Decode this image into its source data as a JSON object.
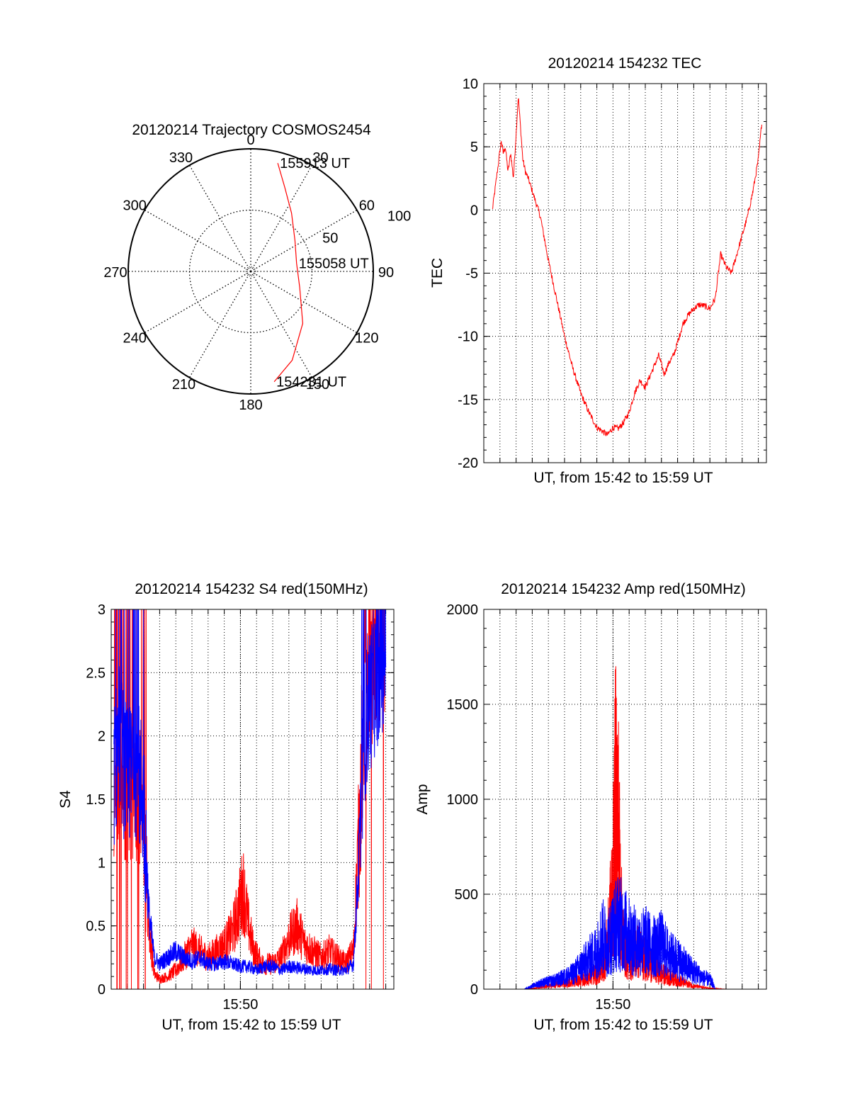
{
  "colors": {
    "red": "#ff0000",
    "blue": "#0000ff",
    "axis": "#000000",
    "grid": "#000000"
  },
  "chart_data": [
    {
      "id": "trajectory",
      "type": "polar",
      "title": "20120214 Trajectory COSMOS2454",
      "angle_labels": [
        "0",
        "30",
        "60",
        "90",
        "120",
        "150",
        "180",
        "210",
        "240",
        "270",
        "300",
        "330"
      ],
      "radius_labels": [
        "50",
        "100"
      ],
      "rlim": [
        0,
        100
      ],
      "grid": true,
      "series": [
        {
          "color": "red",
          "points": [
            {
              "az": 14,
              "r": 91
            },
            {
              "az": 22,
              "r": 74
            },
            {
              "az": 35,
              "r": 58
            },
            {
              "az": 55,
              "r": 44
            },
            {
              "az": 80,
              "r": 38
            },
            {
              "az": 108,
              "r": 42
            },
            {
              "az": 135,
              "r": 60
            },
            {
              "az": 155,
              "r": 80
            },
            {
              "az": 168,
              "r": 92
            }
          ]
        }
      ],
      "annotations": [
        {
          "text": "155913 UT",
          "az": 14,
          "r": 91
        },
        {
          "text": "155058 UT",
          "az": 80,
          "r": 38
        },
        {
          "text": "154231 UT",
          "az": 168,
          "r": 92
        }
      ]
    },
    {
      "id": "tec",
      "type": "line",
      "title": "20120214 154232 TEC",
      "xlabel": "UT, from 15:42 to 15:59 UT",
      "ylabel": "TEC",
      "xlim": [
        "15:42:00",
        "15:59:30"
      ],
      "ylim": [
        -20,
        10
      ],
      "yticks": [
        -20,
        -15,
        -10,
        -5,
        0,
        5,
        10
      ],
      "xticks": [],
      "grid": true,
      "series": [
        {
          "color": "red",
          "x": [
            "15:42:32",
            "15:42:50",
            "15:43:05",
            "15:43:12",
            "15:43:20",
            "15:43:30",
            "15:43:40",
            "15:43:50",
            "15:44:00",
            "15:44:08",
            "15:44:15",
            "15:44:25",
            "15:44:35",
            "15:44:45",
            "15:45:00",
            "15:45:30",
            "15:46:00",
            "15:46:30",
            "15:47:00",
            "15:47:30",
            "15:48:00",
            "15:48:30",
            "15:49:00",
            "15:49:20",
            "15:49:40",
            "15:50:00",
            "15:50:20",
            "15:50:40",
            "15:51:00",
            "15:51:20",
            "15:51:40",
            "15:52:00",
            "15:52:30",
            "15:52:50",
            "15:53:10",
            "15:53:30",
            "15:53:45",
            "15:54:00",
            "15:54:20",
            "15:54:40",
            "15:55:00",
            "15:55:20",
            "15:55:40",
            "15:56:00",
            "15:56:20",
            "15:56:40",
            "15:57:00",
            "15:57:20",
            "15:57:40",
            "15:58:00",
            "15:58:20",
            "15:58:40",
            "15:59:00",
            "15:59:13"
          ],
          "y": [
            0,
            3,
            5.5,
            4.5,
            5,
            3,
            4.5,
            2.5,
            6,
            9,
            7,
            4,
            3,
            2.5,
            1.5,
            -0.5,
            -4,
            -7,
            -10,
            -12.5,
            -14.5,
            -16,
            -17.2,
            -17.5,
            -17.8,
            -17.2,
            -17.3,
            -16.8,
            -16,
            -14.5,
            -13.5,
            -14,
            -12.5,
            -11.5,
            -13,
            -12,
            -11.5,
            -10.5,
            -9,
            -8.3,
            -7.8,
            -7.5,
            -7.6,
            -7.8,
            -7,
            -3.5,
            -4.5,
            -5,
            -3.5,
            -2,
            -0.5,
            1.5,
            4,
            7
          ]
        }
      ]
    },
    {
      "id": "s4",
      "type": "line",
      "title": "20120214 154232 S4 red(150MHz)",
      "xlabel": "UT, from 15:42 to 15:59 UT",
      "ylabel": "S4",
      "xlim": [
        "15:42:00",
        "15:59:30"
      ],
      "ylim": [
        0,
        3
      ],
      "yticks": [
        "0",
        "0.5",
        "1",
        "1.5",
        "2",
        "2.5",
        "3"
      ],
      "xticks": [
        "15:50"
      ],
      "grid": true,
      "series": [
        {
          "color": "red",
          "x": [
            "15:42:10",
            "15:42:30",
            "15:43:00",
            "15:43:30",
            "15:44:00",
            "15:44:20",
            "15:44:40",
            "15:45:00",
            "15:45:30",
            "15:46:00",
            "15:46:30",
            "15:47:00",
            "15:47:30",
            "15:48:00",
            "15:48:30",
            "15:49:00",
            "15:49:30",
            "15:49:50",
            "15:50:10",
            "15:50:30",
            "15:50:50",
            "15:51:20",
            "15:52:00",
            "15:52:30",
            "15:53:00",
            "15:53:30",
            "15:54:00",
            "15:54:30",
            "15:55:00",
            "15:55:30",
            "15:56:00",
            "15:56:30",
            "15:57:00",
            "15:57:20",
            "15:57:40",
            "15:58:00",
            "15:58:30",
            "15:59:00"
          ],
          "y": [
            1.6,
            1.8,
            1.5,
            1.6,
            1.4,
            0.5,
            0.12,
            0.08,
            0.1,
            0.15,
            0.25,
            0.35,
            0.3,
            0.25,
            0.3,
            0.35,
            0.45,
            0.6,
            0.8,
            0.5,
            0.3,
            0.2,
            0.2,
            0.25,
            0.4,
            0.5,
            0.35,
            0.3,
            0.25,
            0.3,
            0.25,
            0.2,
            0.3,
            1.2,
            2.2,
            2.5,
            2.6,
            2.8
          ]
        },
        {
          "color": "blue",
          "x": [
            "15:42:10",
            "15:42:30",
            "15:43:00",
            "15:43:30",
            "15:44:00",
            "15:44:20",
            "15:44:40",
            "15:45:00",
            "15:45:30",
            "15:46:00",
            "15:46:30",
            "15:47:00",
            "15:47:30",
            "15:48:00",
            "15:48:30",
            "15:49:00",
            "15:49:30",
            "15:50:00",
            "15:50:30",
            "15:51:00",
            "15:51:30",
            "15:52:00",
            "15:52:30",
            "15:53:00",
            "15:53:30",
            "15:54:00",
            "15:54:30",
            "15:55:00",
            "15:55:30",
            "15:56:00",
            "15:56:30",
            "15:57:00",
            "15:57:20",
            "15:57:40",
            "15:58:00",
            "15:58:30",
            "15:59:00"
          ],
          "y": [
            1.7,
            2.0,
            1.6,
            1.8,
            1.5,
            0.6,
            0.25,
            0.2,
            0.25,
            0.3,
            0.25,
            0.22,
            0.25,
            0.2,
            0.2,
            0.22,
            0.2,
            0.18,
            0.18,
            0.15,
            0.18,
            0.18,
            0.15,
            0.18,
            0.17,
            0.16,
            0.15,
            0.15,
            0.16,
            0.15,
            0.15,
            0.2,
            1.0,
            2.0,
            2.3,
            2.5,
            2.7
          ]
        }
      ]
    },
    {
      "id": "amp",
      "type": "line",
      "title": "20120214 154232 Amp red(150MHz)",
      "xlabel": "UT, from 15:42 to 15:59 UT",
      "ylabel": "Amp",
      "xlim": [
        "15:42:00",
        "15:59:30"
      ],
      "ylim": [
        0,
        2000
      ],
      "yticks": [
        0,
        500,
        1000,
        1500,
        2000
      ],
      "xticks": [
        "15:50"
      ],
      "grid": true,
      "series": [
        {
          "color": "red",
          "x": [
            "15:42:20",
            "15:44:30",
            "15:45:00",
            "15:46:00",
            "15:47:00",
            "15:48:00",
            "15:49:00",
            "15:49:20",
            "15:49:40",
            "15:50:00",
            "15:50:10",
            "15:50:20",
            "15:50:30",
            "15:50:40",
            "15:51:00",
            "15:51:30",
            "15:52:00",
            "15:52:30",
            "15:53:00",
            "15:53:30",
            "15:54:00",
            "15:54:30",
            "15:55:00",
            "15:56:00",
            "15:57:00",
            "15:59:00"
          ],
          "y": [
            0,
            0,
            5,
            20,
            40,
            60,
            100,
            150,
            300,
            700,
            1300,
            1100,
            500,
            300,
            200,
            250,
            200,
            150,
            100,
            80,
            60,
            40,
            20,
            5,
            0,
            0
          ]
        },
        {
          "color": "blue",
          "x": [
            "15:42:20",
            "15:44:30",
            "15:45:00",
            "15:45:30",
            "15:46:00",
            "15:46:30",
            "15:47:00",
            "15:47:30",
            "15:48:00",
            "15:48:30",
            "15:49:00",
            "15:49:20",
            "15:49:40",
            "15:50:00",
            "15:50:20",
            "15:50:40",
            "15:51:00",
            "15:51:30",
            "15:52:00",
            "15:52:30",
            "15:53:00",
            "15:53:30",
            "15:54:00",
            "15:54:30",
            "15:55:00",
            "15:55:30",
            "15:56:00",
            "15:56:10",
            "15:56:20",
            "15:59:00"
          ],
          "y": [
            0,
            0,
            20,
            40,
            50,
            60,
            80,
            100,
            150,
            200,
            250,
            350,
            300,
            380,
            450,
            400,
            350,
            300,
            320,
            280,
            300,
            220,
            200,
            150,
            120,
            80,
            60,
            40,
            0,
            0
          ]
        }
      ]
    }
  ]
}
